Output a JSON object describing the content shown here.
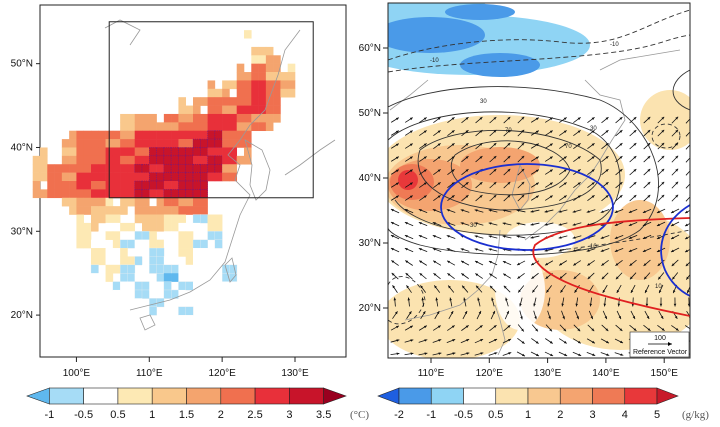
{
  "left_map": {
    "lat_labels": [
      "50°N",
      "40°N",
      "30°N",
      "20°N"
    ],
    "lon_labels": [
      "100°E",
      "110°E",
      "120°E",
      "130°E"
    ],
    "lon_range": [
      95,
      137
    ],
    "lat_range": [
      15,
      57
    ],
    "region_box": {
      "lon": [
        104.5,
        132.5
      ],
      "lat": [
        34,
        55
      ]
    },
    "grid_lons_start": 95,
    "grid_lats_start": 53,
    "grid_step_deg": 2,
    "grid_rows": [
      "..............3.....",
      "...............45...",
      "..............5654..",
      "............556765..",
      "..........4566776...",
      "......45566677665...",
      "..5666677778866.....",
      "4.5667778888875.....",
      "46677778888886......",
      "566777788888........",
      "..4554455666........",
      "...3433443323.......",
      "...3232232321.......",
      "....32321232........",
      "....2312102221......",
      ".....221212222......",
      ".......21.2.........",
      "..........2........."
    ],
    "colorbar": {
      "labels": [
        "-1",
        "-0.5",
        "0.5",
        "1",
        "1.5",
        "2",
        "2.5",
        "3",
        "3.5"
      ],
      "unit": "(°C)",
      "colors": [
        "#5fb8ee",
        "#a6dcf6",
        "#ffffff",
        "#fde9b4",
        "#f9c88c",
        "#f4a46e",
        "#f0704f",
        "#e8303a",
        "#c8142a",
        "#99001f"
      ]
    }
  },
  "right_map": {
    "lat_labels": [
      "60°N",
      "50°N",
      "40°N",
      "30°N",
      "20°N"
    ],
    "lon_labels": [
      "110°E",
      "120°E",
      "130°E",
      "140°E",
      "150°E"
    ],
    "contour_labels": [
      "-10",
      "-10",
      "30",
      "70",
      "70",
      "30",
      "30",
      "10",
      "10"
    ],
    "reference_vector": {
      "value": "100",
      "label": "Reference Vector"
    },
    "colorbar": {
      "labels": [
        "-2",
        "-1",
        "-0.5",
        "0.5",
        "1",
        "2",
        "3",
        "4",
        "5"
      ],
      "unit": "(g/kg)",
      "colors": [
        "#1e5fe0",
        "#4a9ae8",
        "#8fd4f4",
        "#ffffff",
        "#fbe3b0",
        "#f8c890",
        "#f4a470",
        "#ef7a55",
        "#e8383a",
        "#c81a2a"
      ]
    }
  }
}
